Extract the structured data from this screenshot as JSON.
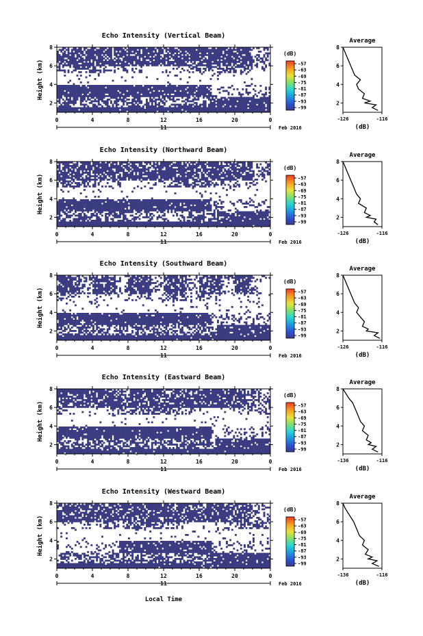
{
  "common": {
    "ylabel": "Height (km)",
    "y_ticks": [
      "2",
      "4",
      "6",
      "8"
    ],
    "x_ticks": [
      "0",
      "4",
      "8",
      "12",
      "16",
      "20",
      "0"
    ],
    "date_day": "11",
    "date_month_year": "Feb 2016",
    "xlabel_bottom": "Local Time",
    "colorbar_unit": "(dB)",
    "colorbar_ticks": [
      "-57",
      "-63",
      "-69",
      "-75",
      "-81",
      "-87",
      "-93",
      "-99"
    ],
    "avg_title": "Average",
    "avg_xlabel": "(dB)"
  },
  "chart_data": [
    {
      "type": "heatmap",
      "title": "Echo Intensity (Vertical Beam)",
      "ylabel": "Height (km)",
      "xlabel": "",
      "x_range_hours": [
        0,
        24
      ],
      "y_range_km": [
        1,
        8
      ],
      "x_ticks": [
        "0",
        "4",
        "8",
        "12",
        "16",
        "20",
        "0"
      ],
      "y_ticks": [
        "2",
        "4",
        "6",
        "8"
      ],
      "colorbar": {
        "label": "(dB)",
        "ticks": [
          -57,
          -63,
          -69,
          -75,
          -81,
          -87,
          -93,
          -99
        ]
      },
      "average_profile": {
        "title": "Average",
        "xlabel": "(dB)",
        "x_ticks": [
          "-126",
          "-116"
        ],
        "x_range": [
          -126,
          -116
        ],
        "height_km": [
          1.2,
          1.5,
          1.8,
          2.0,
          2.2,
          2.5,
          3.0,
          3.5,
          4.0,
          4.5,
          5.0,
          5.5,
          6.0,
          6.5,
          7.0,
          7.5,
          8.0
        ],
        "db": [
          -117.0,
          -118.5,
          -117.5,
          -120.5,
          -119.0,
          -121.0,
          -120.5,
          -122.0,
          -122.5,
          -121.5,
          -123.0,
          -123.5,
          -124.0,
          -124.5,
          -125.0,
          -125.5,
          -126.0
        ]
      }
    },
    {
      "type": "heatmap",
      "title": "Echo Intensity (Northward Beam)",
      "ylabel": "Height (km)",
      "xlabel": "",
      "x_range_hours": [
        0,
        24
      ],
      "y_range_km": [
        1,
        8
      ],
      "x_ticks": [
        "0",
        "4",
        "8",
        "12",
        "16",
        "20",
        "0"
      ],
      "y_ticks": [
        "2",
        "4",
        "6",
        "8"
      ],
      "colorbar": {
        "label": "(dB)",
        "ticks": [
          -57,
          -63,
          -69,
          -75,
          -81,
          -87,
          -93,
          -99
        ]
      },
      "average_profile": {
        "title": "Average",
        "xlabel": "(dB)",
        "x_ticks": [
          "-126",
          "-116"
        ],
        "x_range": [
          -126,
          -116
        ],
        "height_km": [
          1.2,
          1.5,
          1.8,
          2.0,
          2.2,
          2.5,
          3.0,
          3.5,
          4.0,
          4.5,
          5.0,
          5.5,
          6.0,
          6.5,
          7.0,
          7.5,
          8.0
        ],
        "db": [
          -117.0,
          -118.0,
          -117.5,
          -120.0,
          -119.0,
          -120.5,
          -120.0,
          -122.0,
          -121.5,
          -122.5,
          -123.0,
          -123.5,
          -124.0,
          -124.5,
          -125.0,
          -125.5,
          -126.0
        ]
      }
    },
    {
      "type": "heatmap",
      "title": "Echo Intensity (Southward Beam)",
      "ylabel": "Height (km)",
      "xlabel": "",
      "x_range_hours": [
        0,
        24
      ],
      "y_range_km": [
        1,
        8
      ],
      "x_ticks": [
        "0",
        "4",
        "8",
        "12",
        "16",
        "20",
        "0"
      ],
      "y_ticks": [
        "2",
        "4",
        "6",
        "8"
      ],
      "colorbar": {
        "label": "(dB)",
        "ticks": [
          -57,
          -63,
          -69,
          -75,
          -81,
          -87,
          -93,
          -99
        ]
      },
      "average_profile": {
        "title": "Average",
        "xlabel": "(dB)",
        "x_ticks": [
          "-126",
          "-116"
        ],
        "x_range": [
          -126,
          -116
        ],
        "height_km": [
          1.2,
          1.5,
          1.8,
          2.0,
          2.2,
          2.5,
          3.0,
          3.5,
          4.0,
          4.5,
          5.0,
          5.5,
          6.0,
          6.5,
          7.0,
          7.5,
          8.0
        ],
        "db": [
          -116.5,
          -118.0,
          -117.0,
          -120.0,
          -119.5,
          -121.0,
          -120.5,
          -121.5,
          -122.5,
          -122.0,
          -123.0,
          -123.5,
          -124.0,
          -124.5,
          -125.0,
          -125.5,
          -126.0
        ]
      }
    },
    {
      "type": "heatmap",
      "title": "Echo Intensity (Eastward Beam)",
      "ylabel": "Height (km)",
      "xlabel": "",
      "x_range_hours": [
        0,
        24
      ],
      "y_range_km": [
        1,
        8
      ],
      "x_ticks": [
        "0",
        "4",
        "8",
        "12",
        "16",
        "20",
        "0"
      ],
      "y_ticks": [
        "2",
        "4",
        "6",
        "8"
      ],
      "colorbar": {
        "label": "(dB)",
        "ticks": [
          -57,
          -63,
          -69,
          -75,
          -81,
          -87,
          -93,
          -99
        ]
      },
      "average_profile": {
        "title": "Average",
        "xlabel": "(dB)",
        "x_ticks": [
          "-136",
          "-116"
        ],
        "x_range": [
          -136,
          -116
        ],
        "height_km": [
          1.2,
          1.5,
          1.8,
          2.0,
          2.2,
          2.5,
          3.0,
          3.5,
          4.0,
          4.5,
          5.0,
          5.5,
          6.0,
          6.5,
          7.0,
          7.5,
          8.0
        ],
        "db": [
          -118.0,
          -121.0,
          -119.0,
          -123.0,
          -121.5,
          -124.0,
          -123.0,
          -126.0,
          -125.0,
          -127.0,
          -128.0,
          -129.0,
          -130.0,
          -131.0,
          -133.0,
          -134.5,
          -136.0
        ]
      }
    },
    {
      "type": "heatmap",
      "title": "Echo Intensity (Westward Beam)",
      "ylabel": "Height (km)",
      "xlabel": "Local Time",
      "x_range_hours": [
        0,
        24
      ],
      "y_range_km": [
        1,
        8
      ],
      "x_ticks": [
        "0",
        "4",
        "8",
        "12",
        "16",
        "20",
        "0"
      ],
      "y_ticks": [
        "2",
        "4",
        "6",
        "8"
      ],
      "colorbar": {
        "label": "(dB)",
        "ticks": [
          -57,
          -63,
          -69,
          -75,
          -81,
          -87,
          -93,
          -99
        ]
      },
      "average_profile": {
        "title": "Average",
        "xlabel": "(dB)",
        "x_ticks": [
          "-136",
          "-116"
        ],
        "x_range": [
          -136,
          -116
        ],
        "height_km": [
          1.2,
          1.5,
          1.8,
          2.0,
          2.2,
          2.5,
          3.0,
          3.5,
          4.0,
          4.5,
          5.0,
          5.5,
          6.0,
          6.5,
          7.0,
          7.5,
          8.0
        ],
        "db": [
          -117.5,
          -121.0,
          -118.5,
          -123.0,
          -121.0,
          -124.5,
          -123.0,
          -126.0,
          -125.0,
          -127.5,
          -128.5,
          -129.5,
          -130.5,
          -132.0,
          -133.5,
          -135.0,
          -136.0
        ]
      }
    }
  ]
}
